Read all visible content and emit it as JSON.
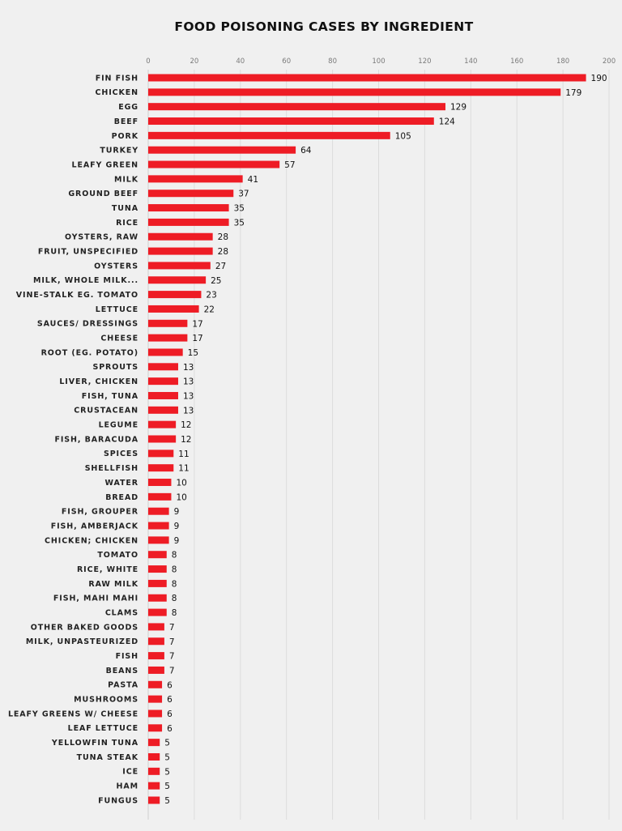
{
  "chart_data": {
    "type": "bar",
    "orientation": "horizontal",
    "title": "FOOD POISONING CASES BY INGREDIENT",
    "xlabel": "",
    "ylabel": "",
    "xlim": [
      0,
      200
    ],
    "x_ticks": [
      0,
      20,
      40,
      60,
      80,
      100,
      120,
      140,
      160,
      180,
      200
    ],
    "x_axis_position": "top",
    "grid": true,
    "bar_color": "#ee1c25",
    "categories": [
      "FIN FISH",
      "CHICKEN",
      "EGG",
      "BEEF",
      "PORK",
      "TURKEY",
      "LEAFY GREEN",
      "MILK",
      "GROUND BEEF",
      "TUNA",
      "RICE",
      "OYSTERS, RAW",
      "FRUIT, UNSPECIFIED",
      "OYSTERS",
      "MILK, WHOLE MILK...",
      "VINE-STALK EG. TOMATO",
      "LETTUCE",
      "SAUCES/ DRESSINGS",
      "CHEESE",
      "ROOT (EG. POTATO)",
      "SPROUTS",
      "LIVER, CHICKEN",
      "FISH, TUNA",
      "CRUSTACEAN",
      "LEGUME",
      "FISH, BARACUDA",
      "SPICES",
      "SHELLFISH",
      "WATER",
      "BREAD",
      "FISH, GROUPER",
      "FISH, AMBERJACK",
      "CHICKEN; CHICKEN",
      "TOMATO",
      "RICE, WHITE",
      "RAW MILK",
      "FISH, MAHI MAHI",
      "CLAMS",
      "OTHER BAKED GOODS",
      "MILK, UNPASTEURIZED",
      "FISH",
      "BEANS",
      "PASTA",
      "MUSHROOMS",
      "LEAFY GREENS W/ CHEESE",
      "LEAF LETTUCE",
      "YELLOWFIN TUNA",
      "TUNA STEAK",
      "ICE",
      "HAM",
      "FUNGUS"
    ],
    "values": [
      190,
      179,
      129,
      124,
      105,
      64,
      57,
      41,
      37,
      35,
      35,
      28,
      28,
      27,
      25,
      23,
      22,
      17,
      17,
      15,
      13,
      13,
      13,
      13,
      12,
      12,
      11,
      11,
      10,
      10,
      9,
      9,
      9,
      8,
      8,
      8,
      8,
      8,
      7,
      7,
      7,
      7,
      6,
      6,
      6,
      6,
      5,
      5,
      5,
      5,
      5
    ]
  }
}
